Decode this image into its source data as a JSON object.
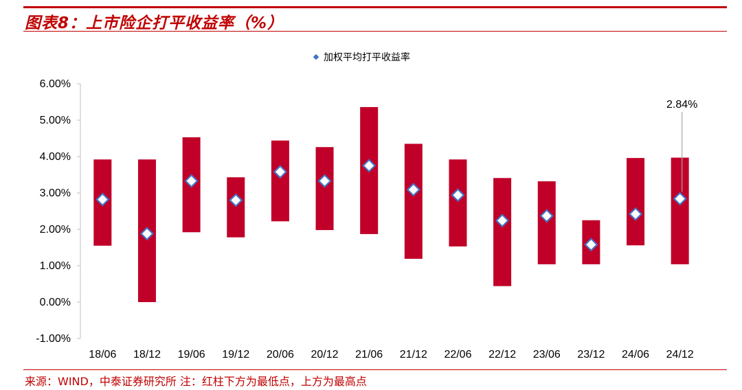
{
  "header": {
    "title": "图表8：上市险企打平收益率（%）"
  },
  "footer": {
    "source": "来源：WIND，中泰证券研究所 注：红柱下方为最低点，上方为最高点"
  },
  "colors": {
    "accent": "#c00000",
    "bar": "#c00028",
    "marker_fill": "#ffffff",
    "marker_stroke": "#4472c4",
    "axis": "#bfbfbf",
    "leader": "#a6a6a6"
  },
  "chart_data": {
    "type": "bar",
    "subtype": "floating-range-with-marker",
    "title": "",
    "legend": {
      "label": "加权平均打平收益率",
      "position": "top-center"
    },
    "categories": [
      "18/06",
      "18/12",
      "19/06",
      "19/12",
      "20/06",
      "20/12",
      "21/06",
      "21/12",
      "22/06",
      "22/12",
      "23/06",
      "23/12",
      "24/06",
      "24/12"
    ],
    "series": [
      {
        "name": "最低点",
        "values": [
          1.55,
          0.0,
          1.92,
          1.78,
          2.22,
          1.98,
          1.87,
          1.19,
          1.53,
          0.44,
          1.04,
          1.04,
          1.56,
          1.04
        ]
      },
      {
        "name": "最高点",
        "values": [
          3.92,
          3.92,
          4.53,
          3.43,
          4.44,
          4.26,
          5.36,
          4.35,
          3.92,
          3.41,
          3.32,
          2.25,
          3.96,
          3.97
        ]
      },
      {
        "name": "加权平均打平收益率",
        "values": [
          2.82,
          1.88,
          3.33,
          2.8,
          3.58,
          3.33,
          3.75,
          3.09,
          2.94,
          2.24,
          2.37,
          1.58,
          2.42,
          2.84
        ]
      }
    ],
    "ylim": [
      -1.0,
      6.0
    ],
    "yticks": [
      -1,
      0,
      1,
      2,
      3,
      4,
      5,
      6
    ],
    "ytick_labels": [
      "-1.00%",
      "0.00%",
      "1.00%",
      "2.00%",
      "3.00%",
      "4.00%",
      "5.00%",
      "6.00%"
    ],
    "annotation": {
      "label": "2.84%",
      "category": "24/12",
      "value": 2.84
    },
    "xlabel": "",
    "ylabel": "",
    "grid": false
  }
}
